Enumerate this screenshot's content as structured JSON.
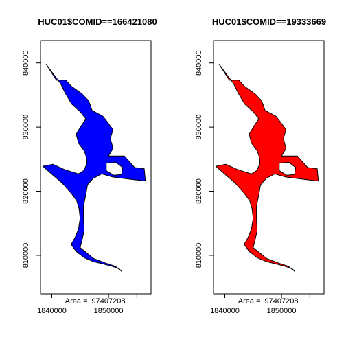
{
  "chart_data": [
    {
      "type": "map",
      "title": "HUC01$COMID==166421080",
      "fill_color": "#0000ff",
      "outline_color": "#000000",
      "xlim": [
        1838000,
        1857500
      ],
      "ylim": [
        804000,
        843500
      ],
      "x_ticks": [
        1840000,
        1850000
      ],
      "x_minor_ticks": [
        1855000
      ],
      "y_ticks": [
        810000,
        820000,
        830000,
        840000
      ],
      "x_tick_labels": [
        "1840000",
        "1850000"
      ],
      "y_tick_labels": [
        "810000",
        "820000",
        "830000",
        "840000"
      ],
      "area_label": "Area = ",
      "area_value": "97407208",
      "lake_outline": [
        [
          1839000,
          839800
        ],
        [
          1840800,
          837300
        ],
        [
          1842500,
          837300
        ],
        [
          1843400,
          836400
        ],
        [
          1845300,
          835200
        ],
        [
          1846500,
          834100
        ],
        [
          1847100,
          832600
        ],
        [
          1849000,
          831700
        ],
        [
          1849800,
          830800
        ],
        [
          1850800,
          829600
        ],
        [
          1850300,
          828200
        ],
        [
          1850800,
          826700
        ],
        [
          1850000,
          825500
        ],
        [
          1852800,
          825500
        ],
        [
          1854600,
          823700
        ],
        [
          1856300,
          823500
        ],
        [
          1856500,
          821600
        ],
        [
          1854500,
          821800
        ],
        [
          1850800,
          822200
        ],
        [
          1848800,
          822700
        ],
        [
          1847300,
          822000
        ],
        [
          1846300,
          821000
        ],
        [
          1846000,
          819500
        ],
        [
          1845600,
          817700
        ],
        [
          1845600,
          815800
        ],
        [
          1845700,
          813800
        ],
        [
          1845000,
          811200
        ],
        [
          1847400,
          809500
        ],
        [
          1849500,
          808800
        ],
        [
          1851200,
          808300
        ],
        [
          1852300,
          807500
        ],
        [
          1851900,
          807900
        ],
        [
          1850600,
          808300
        ],
        [
          1848900,
          808700
        ],
        [
          1847400,
          809000
        ],
        [
          1845800,
          809600
        ],
        [
          1844300,
          810600
        ],
        [
          1843400,
          811700
        ],
        [
          1844100,
          812800
        ],
        [
          1844700,
          814100
        ],
        [
          1845000,
          815800
        ],
        [
          1844800,
          817300
        ],
        [
          1844400,
          818500
        ],
        [
          1843500,
          819600
        ],
        [
          1841800,
          821300
        ],
        [
          1840200,
          822500
        ],
        [
          1838400,
          823900
        ],
        [
          1840200,
          824200
        ],
        [
          1842200,
          823400
        ],
        [
          1844700,
          822700
        ],
        [
          1845600,
          823200
        ],
        [
          1846200,
          824300
        ],
        [
          1846100,
          825300
        ],
        [
          1845700,
          826300
        ],
        [
          1844700,
          827500
        ],
        [
          1844300,
          828900
        ],
        [
          1845100,
          830100
        ],
        [
          1846000,
          831300
        ],
        [
          1845000,
          832400
        ],
        [
          1843500,
          833600
        ],
        [
          1842300,
          835400
        ],
        [
          1841600,
          836700
        ],
        [
          1840000,
          838600
        ]
      ],
      "island": [
        [
          1849600,
          824400
        ],
        [
          1851300,
          824500
        ],
        [
          1852500,
          823700
        ],
        [
          1852300,
          822600
        ],
        [
          1850900,
          822500
        ],
        [
          1849600,
          823200
        ]
      ]
    },
    {
      "type": "map",
      "title": "HUC01$COMID==19333669",
      "fill_color": "#ff0000",
      "outline_color": "#000000",
      "xlim": [
        1838000,
        1857500
      ],
      "ylim": [
        804000,
        843500
      ],
      "x_ticks": [
        1840000,
        1850000
      ],
      "x_minor_ticks": [
        1855000
      ],
      "y_ticks": [
        810000,
        820000,
        830000,
        840000
      ],
      "x_tick_labels": [
        "1840000",
        "1850000"
      ],
      "y_tick_labels": [
        "810000",
        "820000",
        "830000",
        "840000"
      ],
      "area_label": "Area = ",
      "area_value": "97407208",
      "lake_outline": [
        [
          1839000,
          839800
        ],
        [
          1840800,
          837300
        ],
        [
          1842500,
          837300
        ],
        [
          1843400,
          836400
        ],
        [
          1845300,
          835200
        ],
        [
          1846500,
          834100
        ],
        [
          1847100,
          832600
        ],
        [
          1849000,
          831700
        ],
        [
          1849800,
          830800
        ],
        [
          1850800,
          829600
        ],
        [
          1850300,
          828200
        ],
        [
          1850800,
          826700
        ],
        [
          1850000,
          825500
        ],
        [
          1852800,
          825500
        ],
        [
          1854600,
          823700
        ],
        [
          1856300,
          823500
        ],
        [
          1856500,
          821600
        ],
        [
          1854500,
          821800
        ],
        [
          1850800,
          822200
        ],
        [
          1848800,
          822700
        ],
        [
          1847300,
          822000
        ],
        [
          1846300,
          821000
        ],
        [
          1846000,
          819500
        ],
        [
          1845600,
          817700
        ],
        [
          1845600,
          815800
        ],
        [
          1845700,
          813800
        ],
        [
          1845000,
          811200
        ],
        [
          1847400,
          809500
        ],
        [
          1849500,
          808800
        ],
        [
          1851200,
          808300
        ],
        [
          1852300,
          807500
        ],
        [
          1851900,
          807900
        ],
        [
          1850600,
          808300
        ],
        [
          1848900,
          808700
        ],
        [
          1847400,
          809000
        ],
        [
          1845800,
          809600
        ],
        [
          1844300,
          810600
        ],
        [
          1843400,
          811700
        ],
        [
          1844100,
          812800
        ],
        [
          1844700,
          814100
        ],
        [
          1845000,
          815800
        ],
        [
          1844800,
          817300
        ],
        [
          1844400,
          818500
        ],
        [
          1843500,
          819600
        ],
        [
          1841800,
          821300
        ],
        [
          1840200,
          822500
        ],
        [
          1838400,
          823900
        ],
        [
          1840200,
          824200
        ],
        [
          1842200,
          823400
        ],
        [
          1844700,
          822700
        ],
        [
          1845600,
          823200
        ],
        [
          1846200,
          824300
        ],
        [
          1846100,
          825300
        ],
        [
          1845700,
          826300
        ],
        [
          1844700,
          827500
        ],
        [
          1844300,
          828900
        ],
        [
          1845100,
          830100
        ],
        [
          1846000,
          831300
        ],
        [
          1845000,
          832400
        ],
        [
          1843500,
          833600
        ],
        [
          1842300,
          835400
        ],
        [
          1841600,
          836700
        ],
        [
          1840000,
          838600
        ]
      ],
      "island": [
        [
          1849600,
          824400
        ],
        [
          1851300,
          824500
        ],
        [
          1852500,
          823700
        ],
        [
          1852300,
          822600
        ],
        [
          1850900,
          822500
        ],
        [
          1849600,
          823200
        ]
      ]
    }
  ]
}
